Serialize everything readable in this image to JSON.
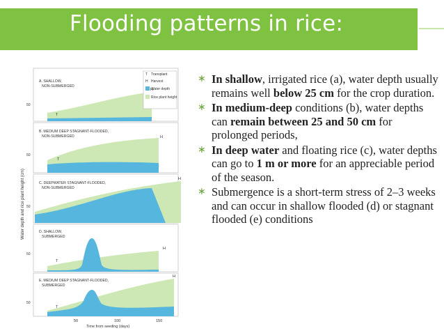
{
  "slide": {
    "title": "Flooding patterns in rice:"
  },
  "figure": {
    "y_axis_label": "Water depth and rice plant height (cm)",
    "x_axis_label": "Time from seeding (days)",
    "x_ticks": [
      "50",
      "100",
      "150"
    ],
    "y_tick": "50",
    "legend": [
      {
        "symbol": "T",
        "label": "Transplant"
      },
      {
        "symbol": "H",
        "label": "Harvest"
      },
      {
        "symbol": "",
        "label": "Water depth",
        "color": "#57b6de"
      },
      {
        "symbol": "",
        "label": "Rice plant height",
        "color": "#cde8b4"
      }
    ],
    "panels": [
      {
        "label_line1": "A. SHALLOW,",
        "label_line2": "NON-SUBMERGED",
        "t": "T",
        "h": "H"
      },
      {
        "label_line1": "B. MEDIUM DEEP STAGNANT-FLOODED,",
        "label_line2": "NON-SUBMERGED",
        "t": "T",
        "h": "H"
      },
      {
        "label_line1": "C. DEEPWATER STAGNANT-FLOODED,",
        "label_line2": "NON-SUBMERGED",
        "t": "",
        "h": "H"
      },
      {
        "label_line1": "D. SHALLOW,",
        "label_line2": "SUBMERGED",
        "t": "T",
        "h": "H"
      },
      {
        "label_line1": "E. MEDIUM DEEP STAGNANT-FLOODED,",
        "label_line2": "SUBMERGED",
        "t": "T",
        "h": "H"
      }
    ]
  },
  "bullets": [
    {
      "parts": [
        {
          "b": true,
          "t": "In shallow"
        },
        {
          "b": false,
          "t": ", irrigated rice (a), water depth usually remains well "
        },
        {
          "b": true,
          "t": "below 25 cm"
        },
        {
          "b": false,
          "t": " for the crop duration."
        }
      ]
    },
    {
      "parts": [
        {
          "b": true,
          "t": "In medium-deep"
        },
        {
          "b": false,
          "t": " conditions (b), water depths can "
        },
        {
          "b": true,
          "t": "remain between 25 and 50 cm"
        },
        {
          "b": false,
          "t": " for prolonged periods,"
        }
      ]
    },
    {
      "parts": [
        {
          "b": true,
          "t": " In deep water"
        },
        {
          "b": false,
          "t": " and floating rice (c), water depths can go to "
        },
        {
          "b": true,
          "t": "1 m or more"
        },
        {
          "b": false,
          "t": " for an appreciable period of the season."
        }
      ]
    },
    {
      "parts": [
        {
          "b": false,
          "t": "Submergence is a short-term stress of 2–3 weeks and can occur in shallow flooded (d) or stagnant flooded (e) conditions"
        }
      ]
    }
  ],
  "colors": {
    "title_bg": "#7fc241",
    "water": "#57b6de",
    "plant": "#cde8b4",
    "bullet_mark": "#6aa33a"
  }
}
